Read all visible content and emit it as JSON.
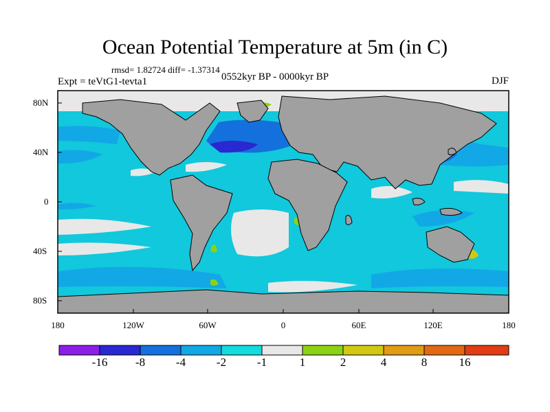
{
  "title": "Ocean Potential Temperature at 5m (in C)",
  "stats": "rmsd= 1.82724  diff= -1.37314",
  "experiment": "Expt = teVtG1-tevta1",
  "period": "0552kyr BP - 0000kyr BP",
  "season": "DJF",
  "axes": {
    "y_ticks": [
      "80N",
      "40N",
      "0",
      "40S",
      "80S"
    ],
    "x_ticks": [
      "180",
      "120W",
      "60W",
      "0",
      "60E",
      "120E",
      "180"
    ]
  },
  "colorbar": {
    "labels": [
      "-16",
      "-8",
      "-4",
      "-2",
      "-1",
      "1",
      "2",
      "4",
      "8",
      "16"
    ],
    "colors": [
      "#8a1ee6",
      "#2a28d0",
      "#1470dc",
      "#12a8e6",
      "#12dcdc",
      "#e8e8e8",
      "#8cd214",
      "#d2c814",
      "#e19b14",
      "#e16914",
      "#e13c14"
    ]
  },
  "palette": {
    "land": "#a0a0a0",
    "ocean_base": "#12c8dc",
    "frame": "#000000"
  }
}
